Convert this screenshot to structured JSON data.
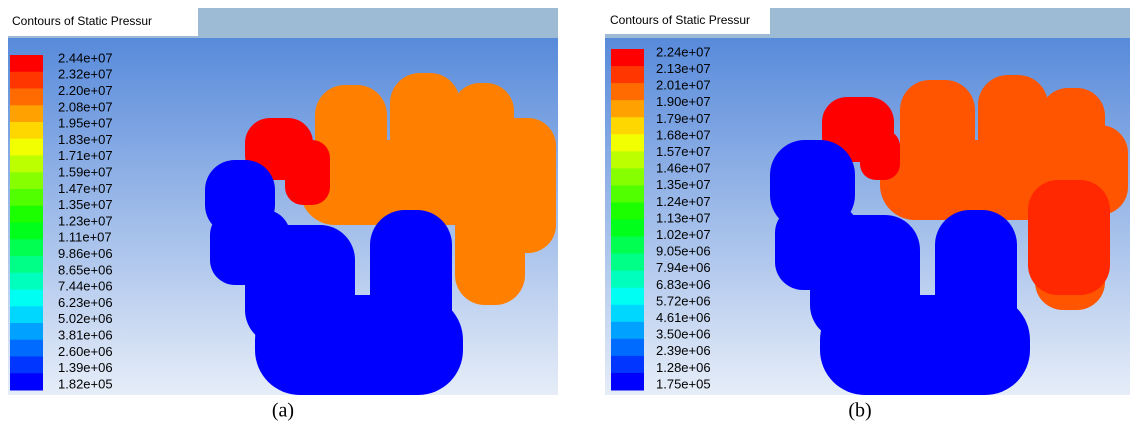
{
  "panels": [
    {
      "title": "Contours of Static Pressur",
      "legend": [
        "2.44e+07",
        "2.32e+07",
        "2.20e+07",
        "2.08e+07",
        "1.95e+07",
        "1.83e+07",
        "1.71e+07",
        "1.59e+07",
        "1.47e+07",
        "1.35e+07",
        "1.23e+07",
        "1.11e+07",
        "9.86e+06",
        "8.65e+06",
        "7.44e+06",
        "6.23e+06",
        "5.02e+06",
        "3.81e+06",
        "2.60e+06",
        "1.39e+06",
        "1.82e+05"
      ],
      "caption": "(a)"
    },
    {
      "title": "Contours of Static Pressur",
      "legend": [
        "2.24e+07",
        "2.13e+07",
        "2.01e+07",
        "1.90e+07",
        "1.79e+07",
        "1.68e+07",
        "1.57e+07",
        "1.46e+07",
        "1.35e+07",
        "1.24e+07",
        "1.13e+07",
        "1.02e+07",
        "9.05e+06",
        "7.94e+06",
        "6.83e+06",
        "5.72e+06",
        "4.61e+06",
        "3.50e+06",
        "2.39e+06",
        "1.28e+06",
        "1.75e+05"
      ],
      "caption": "(b)"
    }
  ]
}
